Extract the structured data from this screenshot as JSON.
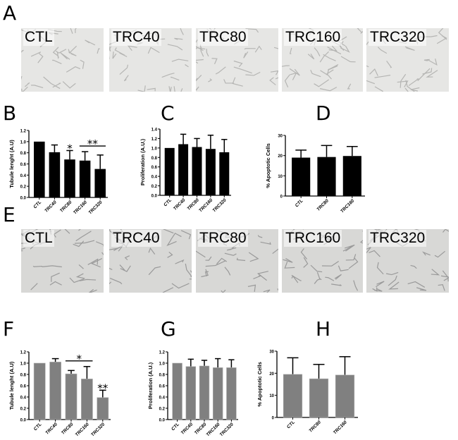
{
  "panel_letters": [
    "A",
    "B",
    "C",
    "D",
    "E",
    "F",
    "G",
    "H"
  ],
  "image_rows": [
    {
      "letter": "A",
      "labels": [
        "CTL",
        "TRC40",
        "TRC80",
        "TRC160",
        "TRC320"
      ]
    },
    {
      "letter": "E",
      "labels": [
        "CTL",
        "TRC40",
        "TRC80",
        "TRC160",
        "TRC320"
      ]
    }
  ],
  "colors": {
    "top_row_bars": "#000000",
    "bottom_row_bars": "#808080"
  },
  "chart_data": [
    {
      "panel": "B",
      "type": "bar",
      "ylabel": "Tubule lenght (A.U)",
      "categories": [
        "CTL",
        "TRC40",
        "TRC80",
        "TRC160",
        "TRC320"
      ],
      "values": [
        1.0,
        0.81,
        0.68,
        0.66,
        0.51
      ],
      "error_upper": [
        1.0,
        0.94,
        0.84,
        0.82,
        0.76
      ],
      "ylim": [
        0,
        1.2
      ],
      "yticks": [
        "0.0",
        "0.2",
        "0.4",
        "0.6",
        "0.8",
        "1.0",
        "1.2"
      ],
      "annotations": [
        {
          "text": "*",
          "over": [
            2
          ]
        },
        {
          "text": "**",
          "over": [
            3,
            4
          ],
          "line": true
        }
      ]
    },
    {
      "panel": "C",
      "type": "bar",
      "ylabel": "Proliferation (A.U.)",
      "categories": [
        "CTL",
        "TRC40",
        "TRC80",
        "TRC160",
        "TRC320"
      ],
      "values": [
        1.0,
        1.08,
        1.02,
        0.98,
        0.91
      ],
      "error_upper": [
        1.0,
        1.29,
        1.2,
        1.27,
        1.18
      ],
      "ylim": [
        0,
        1.4
      ],
      "yticks": [
        "0.0",
        "0.2",
        "0.4",
        "0.6",
        "0.8",
        "1.0",
        "1.2",
        "1.4"
      ],
      "annotations": []
    },
    {
      "panel": "D",
      "type": "bar",
      "ylabel": "% Apoptotic Cells",
      "categories": [
        "CTL",
        "TRC80",
        "TRC160"
      ],
      "values": [
        19.0,
        19.3,
        19.8
      ],
      "error_upper": [
        22.7,
        25.0,
        24.5
      ],
      "ylim": [
        0,
        30
      ],
      "yticks": [
        "0",
        "10",
        "20",
        "30"
      ],
      "annotations": []
    },
    {
      "panel": "F",
      "type": "bar",
      "ylabel": "Tubule lenght (A.U)",
      "categories": [
        "CTL",
        "TRC40",
        "TRC80",
        "TRC160",
        "TRC320"
      ],
      "values": [
        1.0,
        1.02,
        0.81,
        0.72,
        0.39
      ],
      "error_upper": [
        1.0,
        1.08,
        0.87,
        0.94,
        0.52
      ],
      "ylim": [
        0,
        1.2
      ],
      "yticks": [
        "0.0",
        "0.2",
        "0.4",
        "0.6",
        "0.8",
        "1.0",
        "1.2"
      ],
      "annotations": [
        {
          "text": "*",
          "over": [
            2,
            3
          ],
          "line": true
        },
        {
          "text": "**",
          "over": [
            4
          ]
        }
      ]
    },
    {
      "panel": "G",
      "type": "bar",
      "ylabel": "Proliferation (A.U.)",
      "categories": [
        "CTL",
        "TRC40",
        "TRC80",
        "TRC160",
        "TRC320"
      ],
      "values": [
        1.0,
        0.94,
        0.95,
        0.92,
        0.92
      ],
      "error_upper": [
        1.0,
        1.07,
        1.05,
        1.08,
        1.06
      ],
      "ylim": [
        0,
        1.2
      ],
      "yticks": [
        "0.0",
        "0.2",
        "0.4",
        "0.6",
        "0.8",
        "1.0",
        "1.2"
      ],
      "annotations": []
    },
    {
      "panel": "H",
      "type": "bar",
      "ylabel": "% Apoptotic Cells",
      "categories": [
        "CTL",
        "TRC80",
        "TRC160"
      ],
      "values": [
        19.5,
        17.5,
        19.2
      ],
      "error_upper": [
        27.0,
        24.0,
        27.5
      ],
      "ylim": [
        0,
        30
      ],
      "yticks": [
        "0",
        "10",
        "20",
        "30"
      ],
      "annotations": []
    }
  ]
}
